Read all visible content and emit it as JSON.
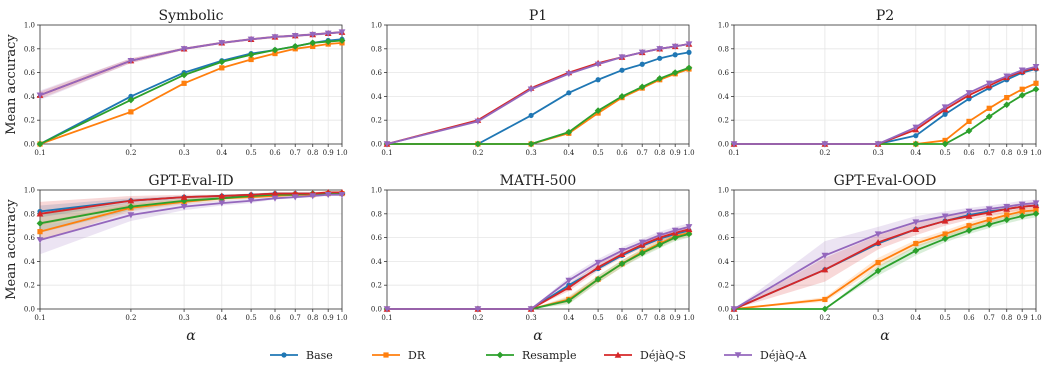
{
  "x_ticks": [
    0.1,
    0.2,
    0.3,
    0.4,
    0.5,
    0.6,
    0.7,
    0.8,
    0.9,
    1.0
  ],
  "x_tick_labels": [
    "0.1",
    "0.2",
    "0.3",
    "0.4",
    "0.5",
    "0.6",
    "0.7",
    "0.8",
    "0.9",
    "1.0"
  ],
  "y_ticks": [
    0.0,
    0.2,
    0.4,
    0.6,
    0.8,
    1.0
  ],
  "y_tick_labels": [
    "0.0",
    "0.2",
    "0.4",
    "0.6",
    "0.8",
    "1.0"
  ],
  "ylabel": "Mean accuracy",
  "xlabel": "α",
  "legend": [
    {
      "name": "Base",
      "color": "#1f77b4",
      "marker": "circle"
    },
    {
      "name": "DR",
      "color": "#ff7f0e",
      "marker": "square"
    },
    {
      "name": "Resample",
      "color": "#2ca02c",
      "marker": "diamond"
    },
    {
      "name": "DéjàQ-S",
      "color": "#d62728",
      "marker": "triangle-up"
    },
    {
      "name": "DéjàQ-A",
      "color": "#9467bd",
      "marker": "triangle-down"
    }
  ],
  "chart_data": [
    {
      "type": "line",
      "title": "Symbolic",
      "x_scale": "log",
      "xlim": [
        0.1,
        1.0
      ],
      "ylim": [
        0,
        1
      ],
      "x": [
        0.1,
        0.2,
        0.3,
        0.4,
        0.5,
        0.6,
        0.7,
        0.8,
        0.9,
        1.0
      ],
      "series": [
        {
          "name": "Base",
          "values": [
            0.0,
            0.4,
            0.6,
            0.7,
            0.76,
            0.79,
            0.82,
            0.85,
            0.87,
            0.88
          ]
        },
        {
          "name": "DR",
          "values": [
            0.0,
            0.27,
            0.51,
            0.64,
            0.71,
            0.76,
            0.8,
            0.82,
            0.84,
            0.85
          ]
        },
        {
          "name": "Resample",
          "values": [
            0.0,
            0.37,
            0.58,
            0.69,
            0.75,
            0.79,
            0.82,
            0.85,
            0.86,
            0.87
          ]
        },
        {
          "name": "DéjàQ-S",
          "values": [
            0.41,
            0.7,
            0.8,
            0.85,
            0.88,
            0.9,
            0.91,
            0.92,
            0.93,
            0.94
          ],
          "band": [
            0.03,
            0.02,
            0.01,
            0.01,
            0.01,
            0.01,
            0.01,
            0.01,
            0.01,
            0.01
          ]
        },
        {
          "name": "DéjàQ-A",
          "values": [
            0.41,
            0.7,
            0.8,
            0.85,
            0.88,
            0.9,
            0.91,
            0.92,
            0.93,
            0.94
          ],
          "band": [
            0.04,
            0.02,
            0.01,
            0.01,
            0.01,
            0.01,
            0.01,
            0.01,
            0.01,
            0.01
          ]
        }
      ]
    },
    {
      "type": "line",
      "title": "P1",
      "x_scale": "log",
      "xlim": [
        0.1,
        1.0
      ],
      "ylim": [
        0,
        1
      ],
      "x": [
        0.1,
        0.2,
        0.3,
        0.4,
        0.5,
        0.6,
        0.7,
        0.8,
        0.9,
        1.0
      ],
      "series": [
        {
          "name": "Base",
          "values": [
            0.0,
            0.0,
            0.24,
            0.43,
            0.54,
            0.62,
            0.67,
            0.72,
            0.75,
            0.77
          ]
        },
        {
          "name": "DR",
          "values": [
            0.0,
            0.0,
            0.0,
            0.09,
            0.26,
            0.39,
            0.47,
            0.54,
            0.59,
            0.63
          ]
        },
        {
          "name": "Resample",
          "values": [
            0.0,
            0.0,
            0.0,
            0.1,
            0.28,
            0.4,
            0.48,
            0.55,
            0.6,
            0.64
          ]
        },
        {
          "name": "DéjàQ-S",
          "values": [
            0.0,
            0.2,
            0.47,
            0.6,
            0.68,
            0.73,
            0.77,
            0.8,
            0.82,
            0.84
          ]
        },
        {
          "name": "DéjàQ-A",
          "values": [
            0.0,
            0.19,
            0.46,
            0.59,
            0.67,
            0.73,
            0.77,
            0.8,
            0.82,
            0.84
          ]
        }
      ]
    },
    {
      "type": "line",
      "title": "P2",
      "x_scale": "log",
      "xlim": [
        0.1,
        1.0
      ],
      "ylim": [
        0,
        1
      ],
      "x": [
        0.1,
        0.2,
        0.3,
        0.4,
        0.5,
        0.6,
        0.7,
        0.8,
        0.9,
        1.0
      ],
      "series": [
        {
          "name": "Base",
          "values": [
            0.0,
            0.0,
            0.0,
            0.07,
            0.25,
            0.38,
            0.47,
            0.54,
            0.6,
            0.63
          ]
        },
        {
          "name": "DR",
          "values": [
            0.0,
            0.0,
            0.0,
            0.0,
            0.03,
            0.19,
            0.3,
            0.39,
            0.46,
            0.51
          ]
        },
        {
          "name": "Resample",
          "values": [
            0.0,
            0.0,
            0.0,
            0.0,
            0.0,
            0.11,
            0.23,
            0.33,
            0.41,
            0.46
          ]
        },
        {
          "name": "DéjàQ-S",
          "values": [
            0.0,
            0.0,
            0.0,
            0.12,
            0.29,
            0.41,
            0.49,
            0.56,
            0.61,
            0.64
          ]
        },
        {
          "name": "DéjàQ-A",
          "values": [
            0.0,
            0.0,
            0.0,
            0.14,
            0.31,
            0.43,
            0.51,
            0.57,
            0.62,
            0.65
          ]
        }
      ]
    },
    {
      "type": "line",
      "title": "GPT-Eval-ID",
      "x_scale": "log",
      "xlim": [
        0.1,
        1.0
      ],
      "ylim": [
        0,
        1
      ],
      "x": [
        0.1,
        0.2,
        0.3,
        0.4,
        0.5,
        0.6,
        0.7,
        0.8,
        0.9,
        1.0
      ],
      "series": [
        {
          "name": "Base",
          "values": [
            0.82,
            0.91,
            0.94,
            0.95,
            0.96,
            0.97,
            0.97,
            0.97,
            0.97,
            0.97
          ],
          "band": [
            0.05,
            0.02,
            0.01,
            0.01,
            0.01,
            0.01,
            0.01,
            0.01,
            0.01,
            0.01
          ]
        },
        {
          "name": "DR",
          "values": [
            0.65,
            0.85,
            0.9,
            0.93,
            0.94,
            0.95,
            0.96,
            0.96,
            0.97,
            0.97
          ],
          "band": [
            0.08,
            0.03,
            0.02,
            0.02,
            0.01,
            0.01,
            0.01,
            0.01,
            0.01,
            0.01
          ]
        },
        {
          "name": "Resample",
          "values": [
            0.72,
            0.86,
            0.91,
            0.93,
            0.95,
            0.96,
            0.96,
            0.97,
            0.97,
            0.97
          ],
          "band": [
            0.08,
            0.03,
            0.02,
            0.01,
            0.01,
            0.01,
            0.01,
            0.01,
            0.01,
            0.01
          ]
        },
        {
          "name": "DéjàQ-S",
          "values": [
            0.8,
            0.91,
            0.94,
            0.95,
            0.96,
            0.97,
            0.97,
            0.97,
            0.98,
            0.98
          ],
          "band": [
            0.1,
            0.04,
            0.02,
            0.01,
            0.01,
            0.01,
            0.01,
            0.01,
            0.01,
            0.01
          ]
        },
        {
          "name": "DéjàQ-A",
          "values": [
            0.58,
            0.79,
            0.86,
            0.89,
            0.91,
            0.93,
            0.94,
            0.95,
            0.96,
            0.96
          ],
          "band": [
            0.12,
            0.05,
            0.03,
            0.02,
            0.02,
            0.01,
            0.01,
            0.01,
            0.01,
            0.01
          ]
        }
      ]
    },
    {
      "type": "line",
      "title": "MATH-500",
      "x_scale": "log",
      "xlim": [
        0.1,
        1.0
      ],
      "ylim": [
        0,
        1
      ],
      "x": [
        0.1,
        0.2,
        0.3,
        0.4,
        0.5,
        0.6,
        0.7,
        0.8,
        0.9,
        1.0
      ],
      "series": [
        {
          "name": "Base",
          "values": [
            0.0,
            0.0,
            0.0,
            0.2,
            0.34,
            0.45,
            0.53,
            0.59,
            0.63,
            0.66
          ]
        },
        {
          "name": "DR",
          "values": [
            0.0,
            0.0,
            0.0,
            0.08,
            0.25,
            0.38,
            0.48,
            0.55,
            0.61,
            0.64
          ],
          "band": [
            0.0,
            0.0,
            0.0,
            0.03,
            0.03,
            0.03,
            0.03,
            0.03,
            0.03,
            0.03
          ]
        },
        {
          "name": "Resample",
          "values": [
            0.0,
            0.0,
            0.0,
            0.07,
            0.25,
            0.38,
            0.47,
            0.54,
            0.6,
            0.63
          ],
          "band": [
            0.0,
            0.0,
            0.0,
            0.03,
            0.03,
            0.03,
            0.03,
            0.03,
            0.03,
            0.03
          ]
        },
        {
          "name": "DéjàQ-S",
          "values": [
            0.0,
            0.0,
            0.0,
            0.18,
            0.35,
            0.46,
            0.54,
            0.6,
            0.64,
            0.67
          ],
          "band": [
            0.0,
            0.0,
            0.0,
            0.03,
            0.03,
            0.03,
            0.03,
            0.03,
            0.03,
            0.03
          ]
        },
        {
          "name": "DéjàQ-A",
          "values": [
            0.0,
            0.0,
            0.0,
            0.24,
            0.39,
            0.49,
            0.56,
            0.62,
            0.66,
            0.69
          ],
          "band": [
            0.0,
            0.0,
            0.0,
            0.03,
            0.03,
            0.03,
            0.03,
            0.03,
            0.03,
            0.03
          ]
        }
      ]
    },
    {
      "type": "line",
      "title": "GPT-Eval-OOD",
      "x_scale": "log",
      "xlim": [
        0.1,
        1.0
      ],
      "ylim": [
        0,
        1
      ],
      "x": [
        0.1,
        0.2,
        0.3,
        0.4,
        0.5,
        0.6,
        0.7,
        0.8,
        0.9,
        1.0
      ],
      "series": [
        {
          "name": "Base",
          "values": [
            0.0,
            0.33,
            0.55,
            0.67,
            0.74,
            0.79,
            0.82,
            0.84,
            0.86,
            0.87
          ]
        },
        {
          "name": "DR",
          "values": [
            0.0,
            0.08,
            0.39,
            0.55,
            0.63,
            0.7,
            0.75,
            0.79,
            0.82,
            0.83
          ],
          "band": [
            0.0,
            0.02,
            0.04,
            0.03,
            0.03,
            0.03,
            0.03,
            0.03,
            0.03,
            0.03
          ]
        },
        {
          "name": "Resample",
          "values": [
            0.0,
            0.0,
            0.32,
            0.49,
            0.59,
            0.66,
            0.71,
            0.75,
            0.78,
            0.8
          ],
          "band": [
            0.0,
            0.0,
            0.04,
            0.04,
            0.03,
            0.03,
            0.03,
            0.03,
            0.03,
            0.03
          ]
        },
        {
          "name": "DéjàQ-S",
          "values": [
            0.0,
            0.33,
            0.56,
            0.67,
            0.74,
            0.78,
            0.81,
            0.84,
            0.86,
            0.87
          ],
          "band": [
            0.0,
            0.1,
            0.06,
            0.05,
            0.04,
            0.03,
            0.03,
            0.03,
            0.03,
            0.03
          ]
        },
        {
          "name": "DéjàQ-A",
          "values": [
            0.0,
            0.45,
            0.63,
            0.73,
            0.78,
            0.82,
            0.84,
            0.86,
            0.88,
            0.89
          ],
          "band": [
            0.0,
            0.12,
            0.06,
            0.05,
            0.04,
            0.03,
            0.03,
            0.03,
            0.03,
            0.03
          ]
        }
      ]
    }
  ]
}
